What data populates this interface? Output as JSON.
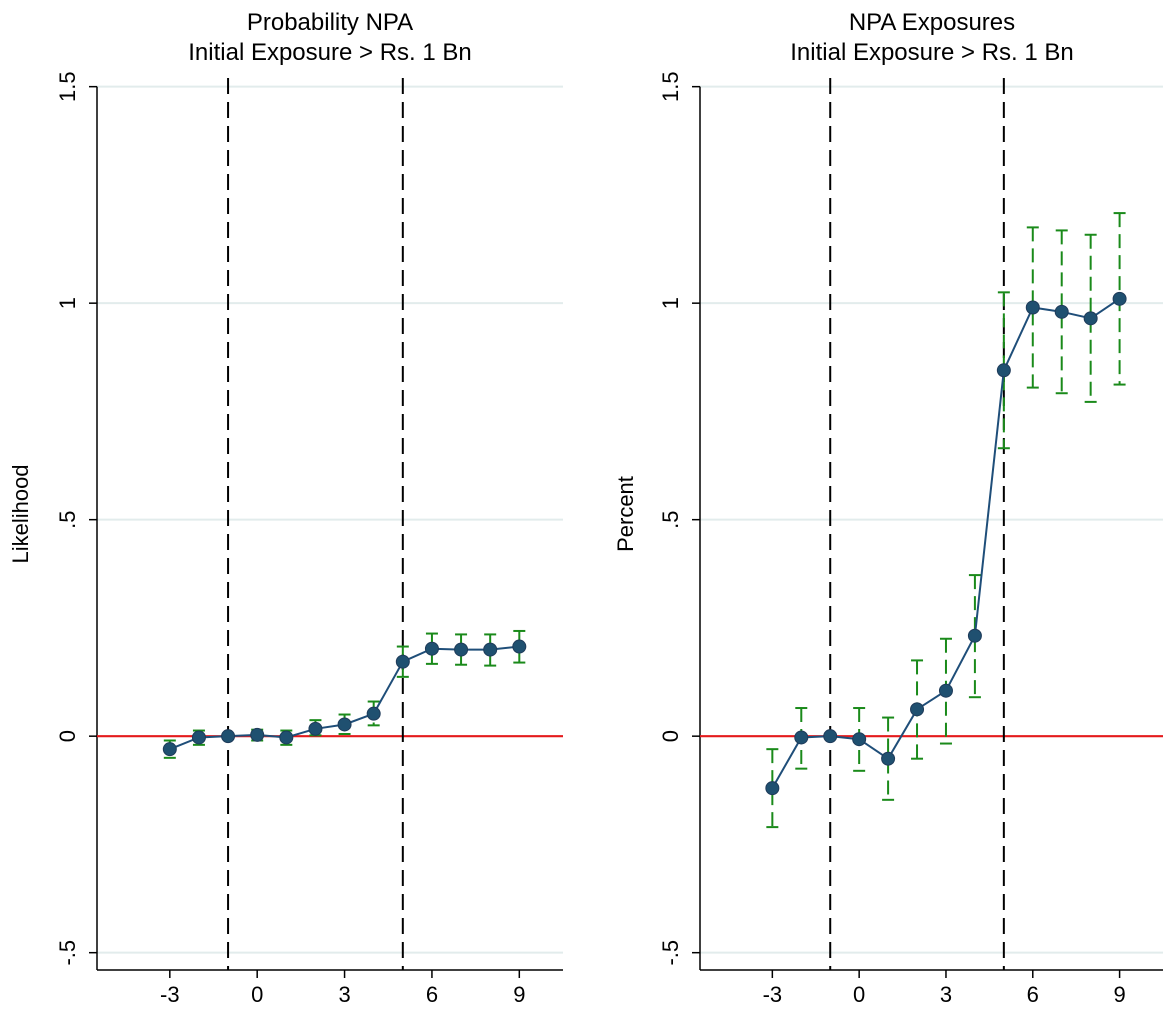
{
  "chart_data": [
    {
      "type": "line",
      "title": [
        "Probability NPA",
        "Initial Exposure > Rs. 1 Bn"
      ],
      "xlabel": "",
      "ylabel": "Likelihood",
      "x_ticks": [
        -3,
        0,
        3,
        6,
        9
      ],
      "x_tick_labels": [
        "-3",
        "0",
        "3",
        "6",
        "9"
      ],
      "y_ticks": [
        -0.5,
        0,
        0.5,
        1,
        1.5
      ],
      "y_tick_labels": [
        "-.5",
        "0",
        ".5",
        "1",
        "1.5"
      ],
      "xlim": [
        -5.5,
        10.5
      ],
      "ylim": [
        -0.54,
        1.52
      ],
      "grid": "horizontal",
      "reference_hline": {
        "y": 0,
        "color": "#e41a1c"
      },
      "reference_vlines": [
        -1,
        5
      ],
      "colors": {
        "line": "#1f4e79",
        "marker": "#1f5070",
        "ci": "#1a8a1a",
        "grid": "#e2ecec"
      },
      "series": [
        {
          "x": [
            -3,
            -2,
            -1,
            0,
            1,
            2,
            3,
            4,
            5,
            6,
            7,
            8,
            9
          ],
          "values": [
            -0.03,
            -0.003,
            0,
            0.003,
            -0.003,
            0.017,
            0.027,
            0.052,
            0.172,
            0.202,
            0.2,
            0.2,
            0.207
          ],
          "ci_low": [
            -0.05,
            -0.02,
            0,
            -0.01,
            -0.02,
            0.002,
            0.005,
            0.025,
            0.137,
            0.167,
            0.165,
            0.163,
            0.17
          ],
          "ci_high": [
            -0.01,
            0.013,
            0,
            0.015,
            0.013,
            0.037,
            0.05,
            0.08,
            0.207,
            0.237,
            0.235,
            0.235,
            0.243
          ]
        }
      ]
    },
    {
      "type": "line",
      "title": [
        "NPA Exposures",
        "Initial Exposure > Rs. 1 Bn"
      ],
      "xlabel": "",
      "ylabel": "Percent",
      "x_ticks": [
        -3,
        0,
        3,
        6,
        9
      ],
      "x_tick_labels": [
        "-3",
        "0",
        "3",
        "6",
        "9"
      ],
      "y_ticks": [
        -0.5,
        0,
        0.5,
        1,
        1.5
      ],
      "y_tick_labels": [
        "-.5",
        "0",
        ".5",
        "1",
        "1.5"
      ],
      "xlim": [
        -5.5,
        10.5
      ],
      "ylim": [
        -0.54,
        1.52
      ],
      "grid": "horizontal",
      "reference_hline": {
        "y": 0,
        "color": "#e41a1c"
      },
      "reference_vlines": [
        -1,
        5
      ],
      "colors": {
        "line": "#1f4e79",
        "marker": "#1f5070",
        "ci": "#1a8a1a",
        "grid": "#e2ecec"
      },
      "series": [
        {
          "x": [
            -3,
            -2,
            -1,
            0,
            1,
            2,
            3,
            4,
            5,
            6,
            7,
            8,
            9
          ],
          "values": [
            -0.12,
            -0.003,
            0,
            -0.007,
            -0.052,
            0.062,
            0.105,
            0.232,
            0.845,
            0.99,
            0.98,
            0.965,
            1.01
          ],
          "ci_low": [
            -0.21,
            -0.075,
            0,
            -0.08,
            -0.147,
            -0.052,
            -0.017,
            0.09,
            0.665,
            0.805,
            0.792,
            0.772,
            0.812
          ],
          "ci_high": [
            -0.03,
            0.065,
            0,
            0.065,
            0.043,
            0.175,
            0.225,
            0.372,
            1.025,
            1.175,
            1.168,
            1.158,
            1.208
          ]
        }
      ]
    }
  ]
}
